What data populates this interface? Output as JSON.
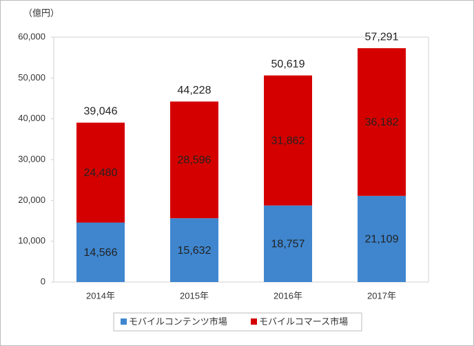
{
  "chart_data": {
    "type": "stacked_bar",
    "unit_label": "（億円）",
    "categories": [
      "2014年",
      "2015年",
      "2016年",
      "2017年"
    ],
    "series": [
      {
        "name": "モバイルコンテンツ市場",
        "color": "#3f86cf",
        "values": [
          14566,
          15632,
          18757,
          21109
        ],
        "value_labels": [
          "14,566",
          "15,632",
          "18,757",
          "21,109"
        ]
      },
      {
        "name": "モバイルコマース市場",
        "color": "#d40000",
        "values": [
          24480,
          28596,
          31862,
          36182
        ],
        "value_labels": [
          "24,480",
          "28,596",
          "31,862",
          "36,182"
        ]
      }
    ],
    "totals": {
      "values": [
        39046,
        44228,
        50619,
        57291
      ],
      "value_labels": [
        "39,046",
        "44,228",
        "50,619",
        "57,291"
      ]
    },
    "ylim": [
      0,
      60000
    ],
    "yticks": [
      0,
      {
        "value": 10000,
        "label": "10,000"
      },
      {
        "value": 20000,
        "label": "20,000"
      },
      {
        "value": 30000,
        "label": "30,000"
      },
      {
        "value": 40000,
        "label": "40,000"
      },
      {
        "value": 50000,
        "label": "50,000"
      },
      {
        "value": 60000,
        "label": "60,000"
      }
    ],
    "grid": false,
    "legend": "bottom"
  }
}
